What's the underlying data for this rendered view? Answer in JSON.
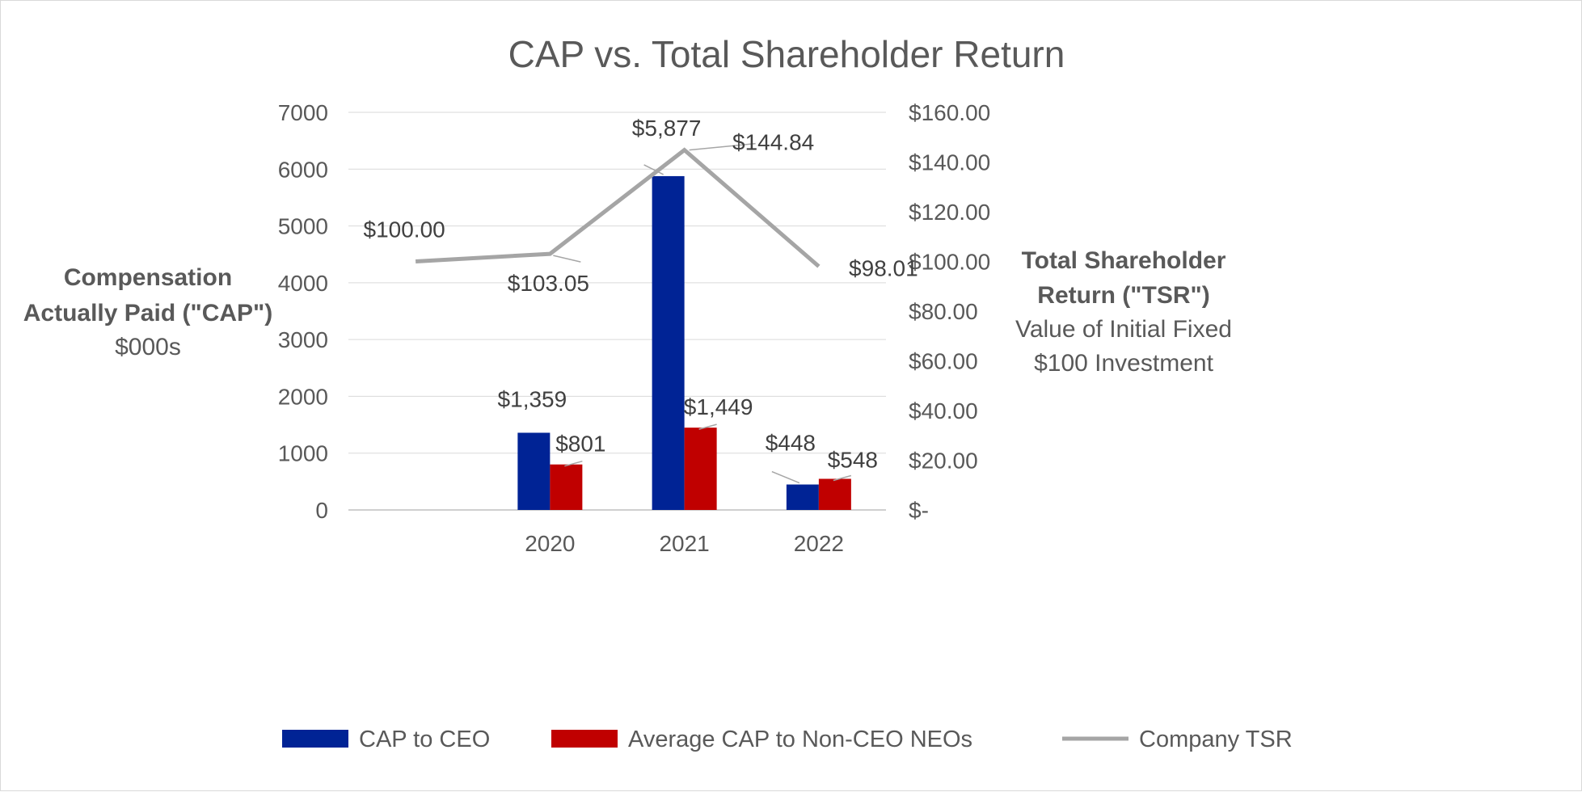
{
  "chart_data": {
    "type": "bar",
    "title": "CAP vs. Total Shareholder Return",
    "categories": [
      "",
      "2020",
      "2021",
      "2022"
    ],
    "y_left": {
      "label_lines": [
        "Compensation",
        "Actually Paid (\"CAP\")",
        "$000s"
      ],
      "ylim": [
        0,
        7000
      ],
      "ticks": [
        "0",
        "1000",
        "2000",
        "3000",
        "4000",
        "5000",
        "6000",
        "7000"
      ],
      "tick_values": [
        0,
        1000,
        2000,
        3000,
        4000,
        5000,
        6000,
        7000
      ]
    },
    "y_right": {
      "label_lines": [
        "Total Shareholder",
        "Return (\"TSR\")",
        "Value of Initial Fixed",
        "$100 Investment"
      ],
      "ylim": [
        0,
        160
      ],
      "ticks": [
        "$-",
        "$20.00",
        "$40.00",
        "$60.00",
        "$80.00",
        "$100.00",
        "$120.00",
        "$140.00",
        "$160.00"
      ],
      "tick_values": [
        0,
        20,
        40,
        60,
        80,
        100,
        120,
        140,
        160
      ]
    },
    "series": [
      {
        "name": "CAP to CEO",
        "type": "bar",
        "axis": "left",
        "color": "#002395",
        "values": [
          null,
          1359,
          5877,
          448
        ],
        "labels": [
          "",
          "$1,359",
          "$5,877",
          "$448"
        ]
      },
      {
        "name": "Average CAP to Non-CEO NEOs",
        "type": "bar",
        "axis": "left",
        "color": "#c00000",
        "values": [
          null,
          801,
          1449,
          548
        ],
        "labels": [
          "",
          "$801",
          "$1,449",
          "$548"
        ]
      },
      {
        "name": "Company TSR",
        "type": "line",
        "axis": "right",
        "color": "#a5a5a5",
        "values": [
          100.0,
          103.05,
          144.84,
          98.01
        ],
        "labels": [
          "$100.00",
          "$103.05",
          "$144.84",
          "$98.01"
        ]
      }
    ],
    "legend": {
      "position": "bottom"
    },
    "grid": true
  }
}
